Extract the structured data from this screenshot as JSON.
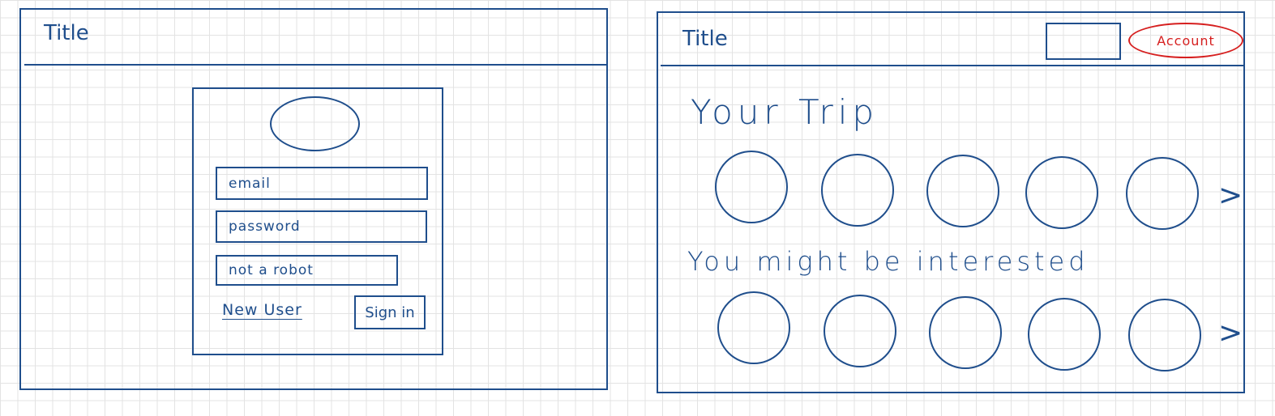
{
  "colors": {
    "ink": "#1f4e8c",
    "accent": "#d61f1f",
    "grid": "#e3e3e3"
  },
  "login_screen": {
    "title": "Title",
    "logo_icon": "logo-placeholder-ellipse",
    "email_placeholder": "email",
    "password_placeholder": "password",
    "captcha_label": "not a robot",
    "new_user_link": "New User",
    "sign_in_label": "Sign in"
  },
  "home_screen": {
    "title": "Title",
    "account_label": "Account",
    "your_trip_heading": "Your Trip",
    "interested_heading": "You might be interested",
    "next_icon": ">"
  }
}
